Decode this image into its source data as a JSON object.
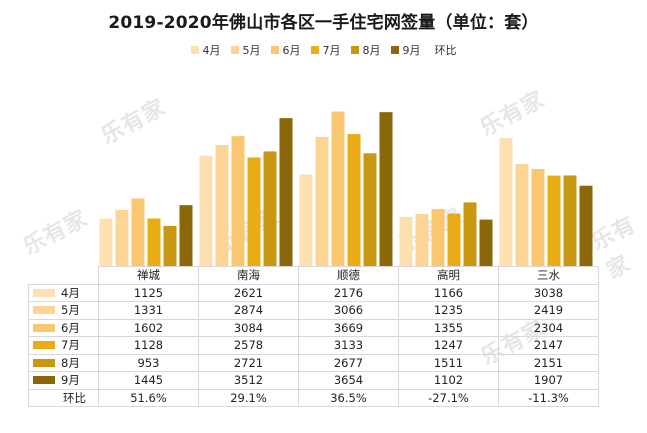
{
  "chart_data": {
    "type": "bar",
    "title": "2019-2020年佛山市各区一手住宅网签量（单位：套）",
    "categories": [
      "禅城",
      "南海",
      "顺德",
      "高明",
      "三水"
    ],
    "series": [
      {
        "name": "4月",
        "color": "#fde0b2",
        "values": [
          1125,
          2621,
          2176,
          1166,
          3038
        ]
      },
      {
        "name": "5月",
        "color": "#fcd595",
        "values": [
          1331,
          2874,
          3066,
          1235,
          2419
        ]
      },
      {
        "name": "6月",
        "color": "#f9c76f",
        "values": [
          1602,
          3084,
          3669,
          1355,
          2304
        ]
      },
      {
        "name": "7月",
        "color": "#e9ac14",
        "values": [
          1128,
          2578,
          3133,
          1247,
          2147
        ]
      },
      {
        "name": "8月",
        "color": "#c99810",
        "values": [
          953,
          2721,
          2677,
          1511,
          2151
        ]
      },
      {
        "name": "9月",
        "color": "#8a6708",
        "values": [
          1445,
          3512,
          3654,
          1102,
          1907
        ]
      }
    ],
    "yoy": {
      "label": "环比",
      "values": [
        "51.6%",
        "29.1%",
        "36.5%",
        "-27.1%",
        "-11.3%"
      ]
    },
    "ylim": [
      0,
      3800
    ],
    "legend_position": "top-center"
  },
  "watermark": "乐有家"
}
